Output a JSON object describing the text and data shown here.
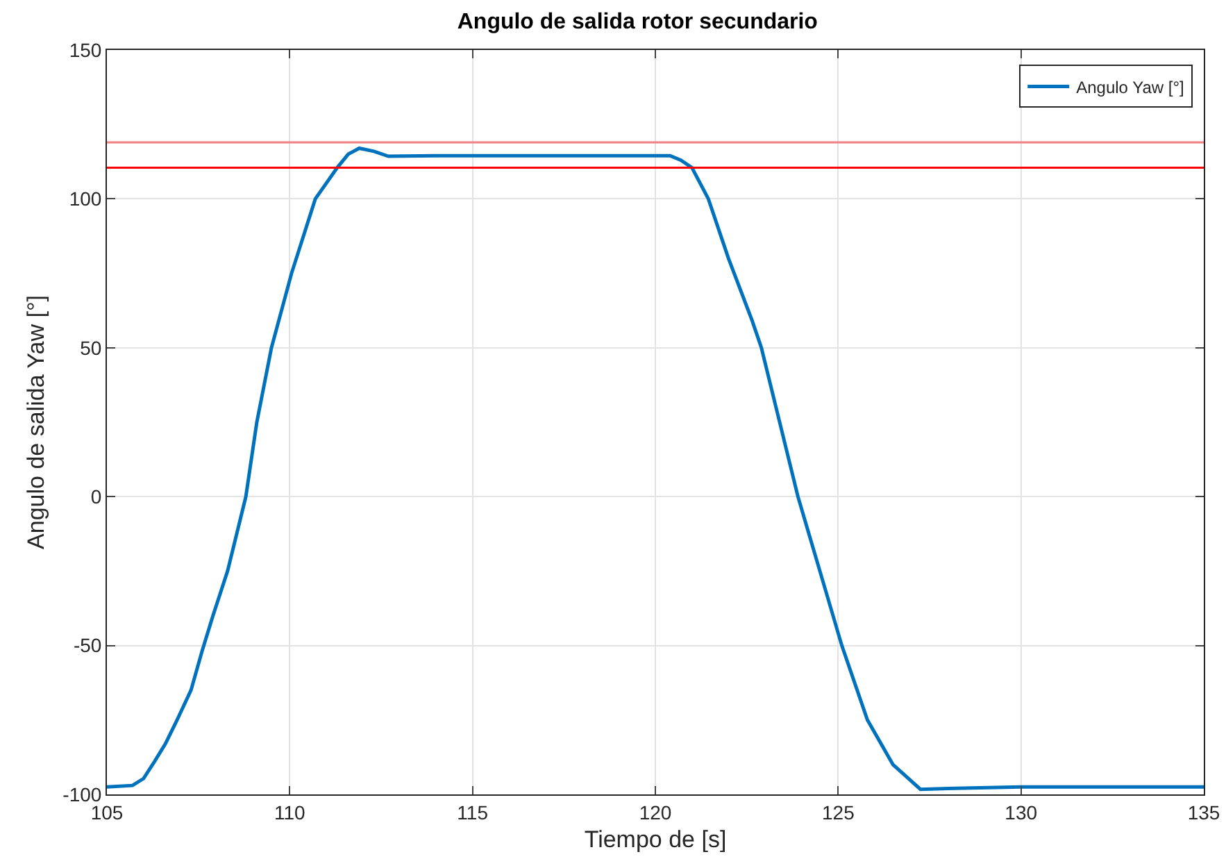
{
  "chart_data": {
    "type": "line",
    "title": "Angulo de salida rotor secundario",
    "xlabel": "Tiempo de [s]",
    "ylabel": "Angulo de salida Yaw [°]",
    "series": [
      {
        "name": "Angulo Yaw [°]",
        "color": "#0072bd",
        "x": [
          105,
          105.7,
          106,
          106.3,
          106.6,
          106.9,
          107.3,
          107.6,
          107.9,
          108.3,
          108.8,
          109.1,
          109.5,
          110.05,
          110.7,
          111.3,
          111.6,
          111.9,
          112.3,
          112.7,
          114,
          116,
          118,
          120,
          120.4,
          120.7,
          121,
          121.45,
          122,
          122.65,
          122.9,
          123.4,
          123.9,
          124.5,
          125.1,
          125.8,
          126.5,
          127.25,
          128,
          130,
          132,
          135
        ],
        "values": [
          -97.5,
          -97,
          -94.7,
          -89,
          -83,
          -75.5,
          -65,
          -52,
          -40,
          -25,
          0,
          25,
          50,
          75,
          100,
          110.5,
          115,
          117,
          116,
          114.3,
          114.5,
          114.5,
          114.5,
          114.5,
          114.5,
          113,
          110.5,
          100,
          80,
          59,
          50,
          25,
          0,
          -25,
          -50,
          -75,
          -90,
          -98.3,
          -98,
          -97.5,
          -97.5,
          -97.5
        ]
      }
    ],
    "ref_lines": [
      {
        "axis": "y",
        "value": 119,
        "color": "#f08080"
      },
      {
        "axis": "y",
        "value": 110.5,
        "color": "#ff0000"
      }
    ],
    "xlim": [
      105,
      135
    ],
    "xticks": [
      105,
      110,
      115,
      120,
      125,
      130,
      135
    ],
    "ylim": [
      -100,
      150
    ],
    "yticks": [
      -100,
      -50,
      0,
      50,
      100,
      150
    ],
    "grid": true,
    "legend": "top right",
    "line_style": "solid",
    "marker": "none"
  }
}
